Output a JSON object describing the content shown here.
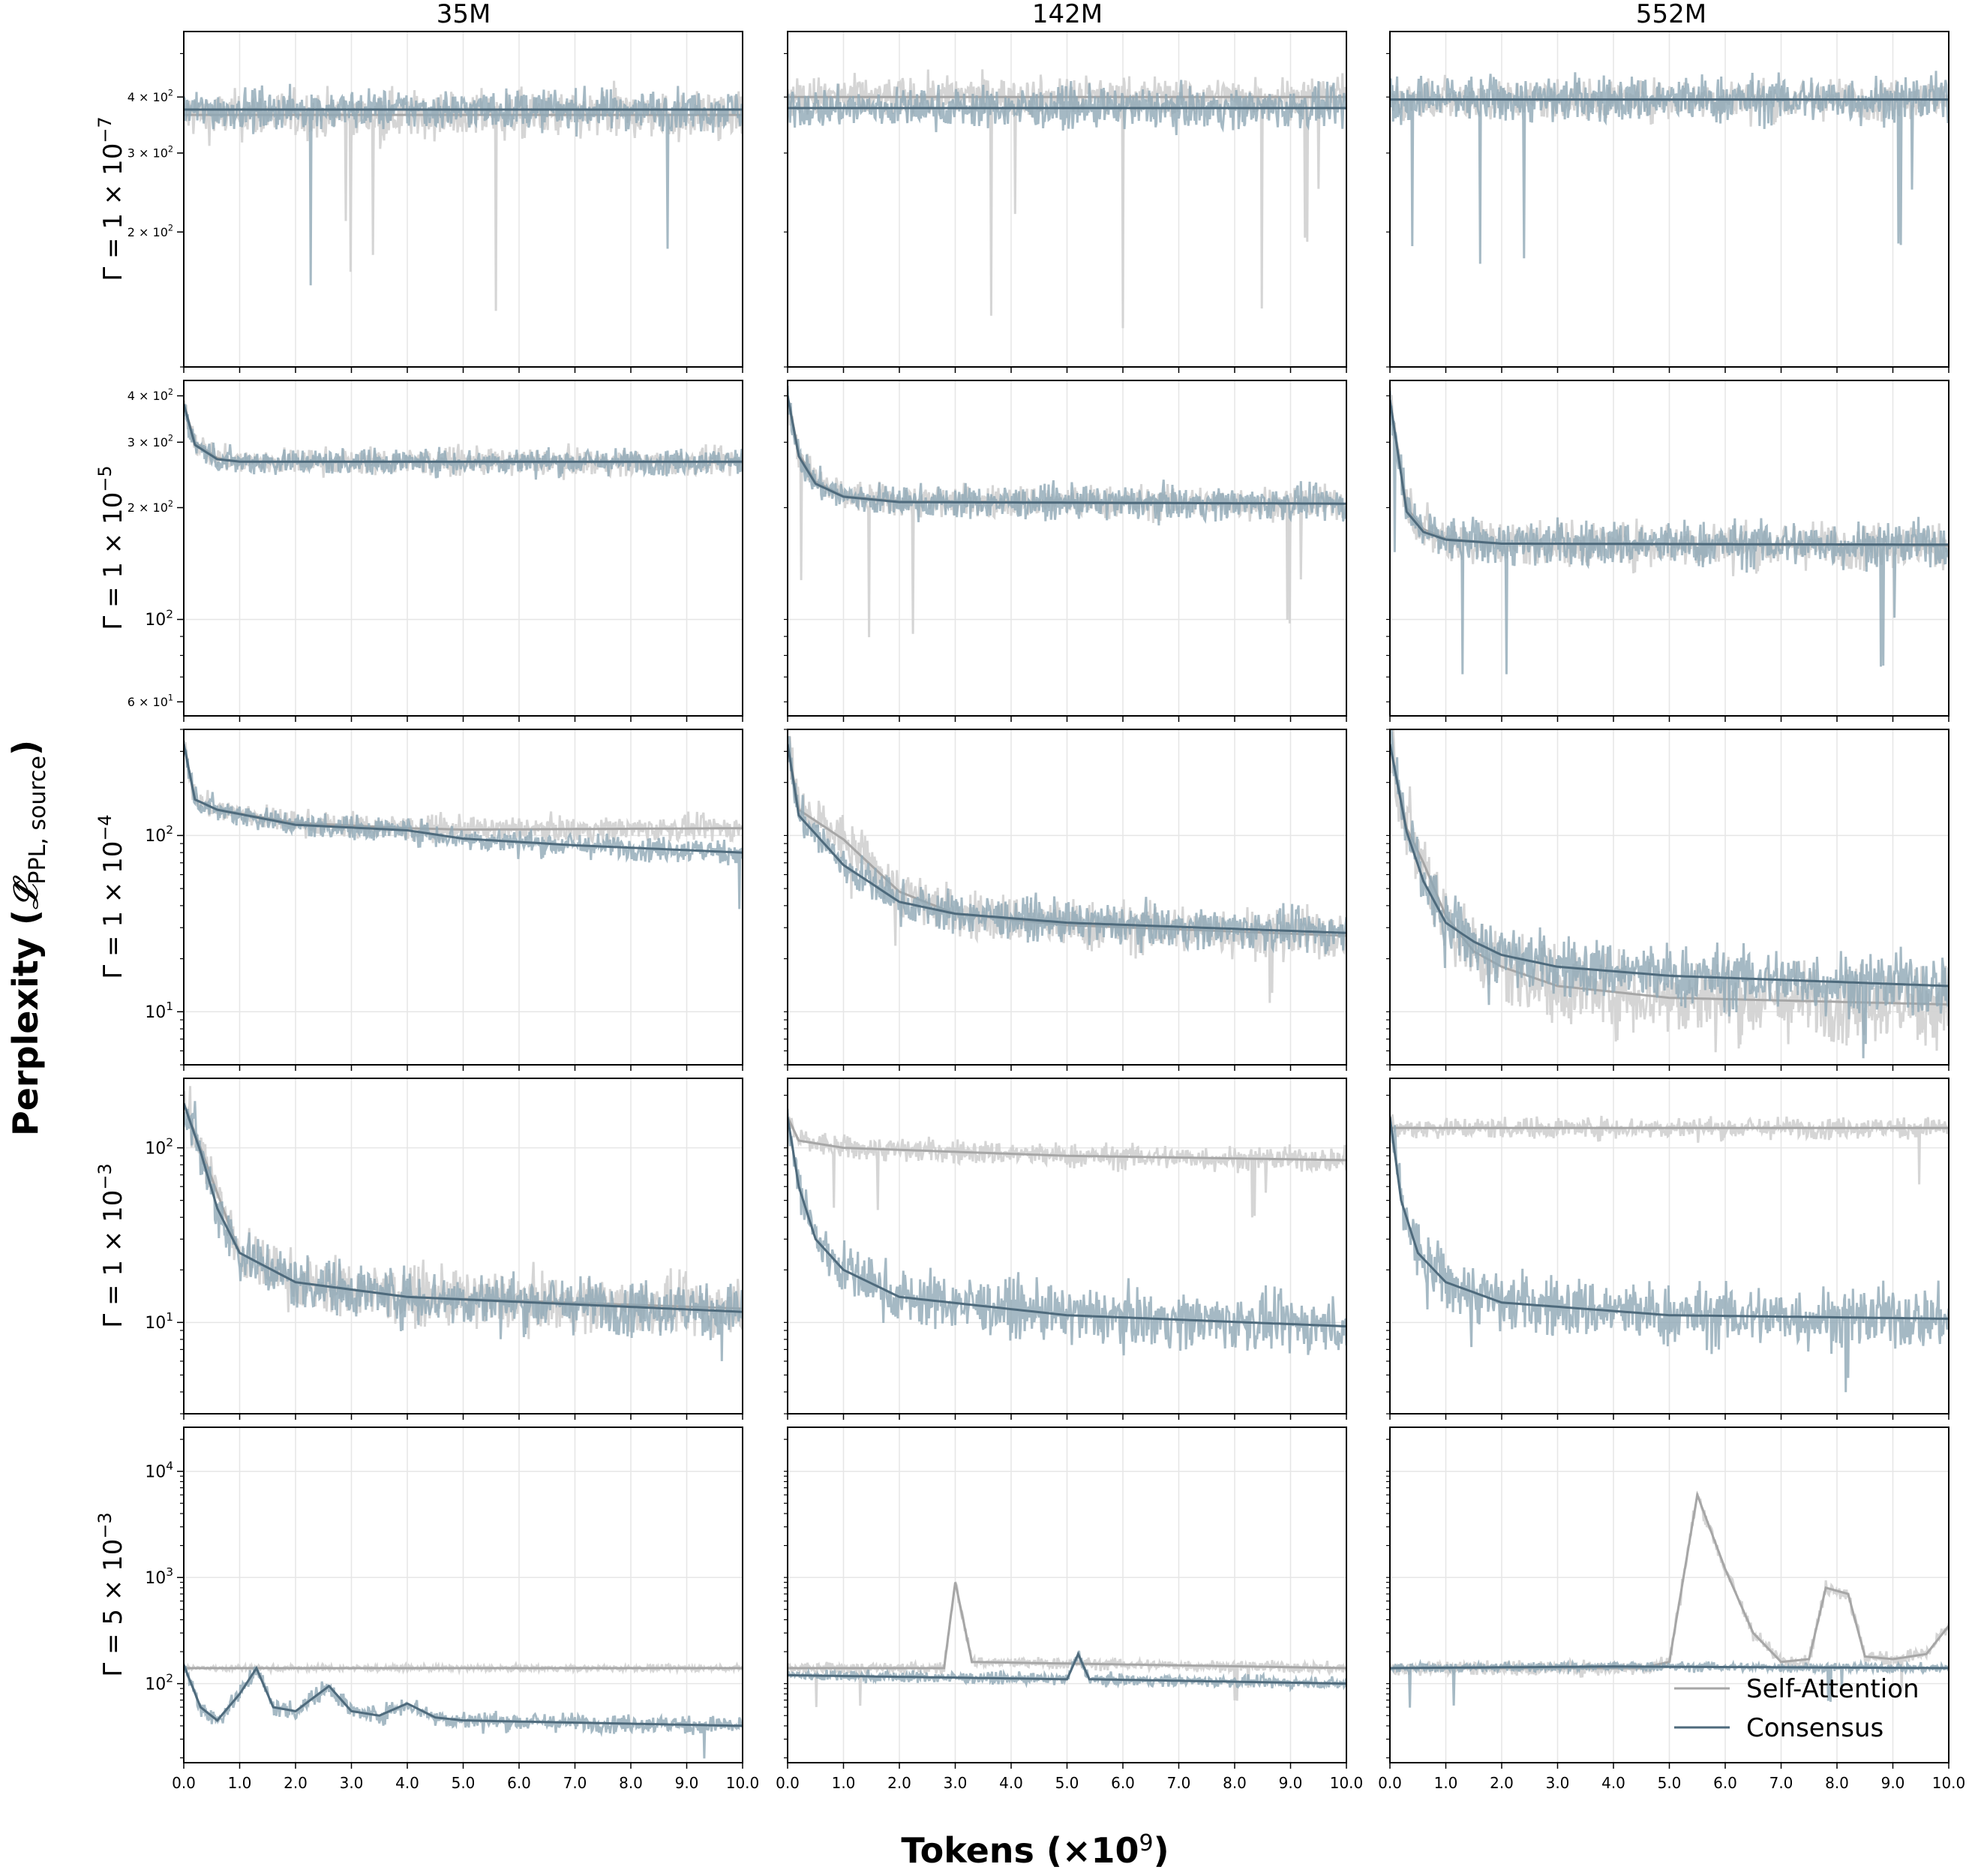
{
  "figure": {
    "ylabel_main": "Perplexity (",
    "ylabel_symbol": "𝓛̂",
    "ylabel_sub": "PPL, source",
    "ylabel_close": ")",
    "xlabel_main": "Tokens (×10",
    "xlabel_sup": "9",
    "xlabel_close": ")",
    "columns": [
      "35M",
      "142M",
      "552M"
    ],
    "rows": [
      {
        "base": "Γ = 1 × 10",
        "exp": "−7"
      },
      {
        "base": "Γ = 1 × 10",
        "exp": "−5"
      },
      {
        "base": "Γ = 1 × 10",
        "exp": "−4"
      },
      {
        "base": "Γ = 1 × 10",
        "exp": "−3"
      },
      {
        "base": "Γ = 5 × 10",
        "exp": "−3"
      }
    ],
    "xticks": [
      "0.0",
      "1.0",
      "2.0",
      "3.0",
      "4.0",
      "5.0",
      "6.0",
      "7.0",
      "8.0",
      "9.0",
      "10.0"
    ],
    "legend": {
      "position": "lower right of bottom-right panel",
      "entries": [
        "Self-Attention",
        "Consensus"
      ]
    },
    "colors": {
      "self_attention_smooth": "#a6a6a6",
      "self_attention_raw": "#d3d3d3",
      "consensus_smooth": "#4e6a7c",
      "consensus_raw": "#8fa7b5"
    }
  },
  "chart_data": {
    "type": "line",
    "yscale": "log",
    "xlim": [
      0,
      10
    ],
    "grid": true,
    "series_names": [
      "Self-Attention",
      "Consensus"
    ],
    "panels": [
      {
        "row": 0,
        "col": 0,
        "ylim": [
          100,
          560
        ],
        "yticks": [
          {
            "v": 200,
            "b": "2",
            "e": "2"
          },
          {
            "v": 300,
            "b": "3",
            "e": "2"
          },
          {
            "v": 400,
            "b": "4",
            "e": "2"
          }
        ],
        "series": [
          {
            "name": "Self-Attention",
            "x": [
              0,
              10
            ],
            "y": [
              365,
              365
            ],
            "noise": 0.06
          },
          {
            "name": "Consensus",
            "x": [
              0,
              10
            ],
            "y": [
              375,
              375
            ],
            "noise": 0.05
          }
        ]
      },
      {
        "row": 0,
        "col": 1,
        "ylim": [
          100,
          560
        ],
        "yticks": [],
        "series": [
          {
            "name": "Self-Attention",
            "x": [
              0,
              10
            ],
            "y": [
              400,
              400
            ],
            "noise": 0.05
          },
          {
            "name": "Consensus",
            "x": [
              0,
              10
            ],
            "y": [
              378,
              378
            ],
            "noise": 0.05
          }
        ]
      },
      {
        "row": 0,
        "col": 2,
        "ylim": [
          100,
          560
        ],
        "yticks": [],
        "series": [
          {
            "name": "Self-Attention",
            "x": [
              0,
              10
            ],
            "y": [
              395,
              395
            ],
            "noise": 0.05
          },
          {
            "name": "Consensus",
            "x": [
              0,
              10
            ],
            "y": [
              395,
              395
            ],
            "noise": 0.06
          }
        ]
      },
      {
        "row": 1,
        "col": 0,
        "ylim": [
          55,
          440
        ],
        "yticks": [
          {
            "v": 60,
            "b": "6",
            "e": "1"
          },
          {
            "v": 100,
            "b": "",
            "e": "2"
          },
          {
            "v": 200,
            "b": "2",
            "e": "2"
          },
          {
            "v": 300,
            "b": "3",
            "e": "2"
          },
          {
            "v": 400,
            "b": "4",
            "e": "2"
          }
        ],
        "series": [
          {
            "name": "Self-Attention",
            "x": [
              0,
              0.2,
              0.6,
              1,
              10
            ],
            "y": [
              380,
              300,
              272,
              266,
              265
            ],
            "noise": 0.04
          },
          {
            "name": "Consensus",
            "x": [
              0,
              0.2,
              0.6,
              1,
              10
            ],
            "y": [
              380,
              295,
              270,
              266,
              266
            ],
            "noise": 0.04
          }
        ]
      },
      {
        "row": 1,
        "col": 1,
        "ylim": [
          55,
          440
        ],
        "yticks": [],
        "series": [
          {
            "name": "Self-Attention",
            "x": [
              0,
              0.2,
              0.5,
              1,
              2,
              10
            ],
            "y": [
              400,
              280,
              235,
              215,
              208,
              205
            ],
            "noise": 0.05
          },
          {
            "name": "Consensus",
            "x": [
              0,
              0.2,
              0.5,
              1,
              2,
              10
            ],
            "y": [
              400,
              275,
              232,
              214,
              207,
              205
            ],
            "noise": 0.05
          }
        ]
      },
      {
        "row": 1,
        "col": 2,
        "ylim": [
          55,
          440
        ],
        "yticks": [],
        "series": [
          {
            "name": "Self-Attention",
            "x": [
              0,
              0.3,
              0.6,
              1,
              2,
              10
            ],
            "y": [
              390,
              200,
              175,
              165,
              160,
              158
            ],
            "noise": 0.07
          },
          {
            "name": "Consensus",
            "x": [
              0,
              0.3,
              0.6,
              1,
              2,
              10
            ],
            "y": [
              390,
              195,
              172,
              164,
              160,
              159
            ],
            "noise": 0.07
          }
        ]
      },
      {
        "row": 2,
        "col": 0,
        "ylim": [
          5,
          400
        ],
        "yticks": [
          {
            "v": 10,
            "b": "",
            "e": "1"
          },
          {
            "v": 100,
            "b": "",
            "e": "2"
          }
        ],
        "series": [
          {
            "name": "Self-Attention",
            "x": [
              0,
              0.2,
              0.6,
              2,
              4,
              5,
              10
            ],
            "y": [
              330,
              160,
              140,
              118,
              110,
              108,
              110
            ],
            "noise": 0.08
          },
          {
            "name": "Consensus",
            "x": [
              0,
              0.2,
              0.6,
              2,
              4,
              5,
              7,
              10
            ],
            "y": [
              330,
              160,
              140,
              115,
              107,
              96,
              88,
              80
            ],
            "noise": 0.08
          }
        ]
      },
      {
        "row": 2,
        "col": 1,
        "ylim": [
          5,
          400
        ],
        "yticks": [],
        "series": [
          {
            "name": "Self-Attention",
            "x": [
              0,
              0.2,
              1,
              2,
              3,
              5,
              10
            ],
            "y": [
              330,
              140,
              95,
              48,
              36,
              31,
              27
            ],
            "noise": 0.16
          },
          {
            "name": "Consensus",
            "x": [
              0,
              0.2,
              1,
              2,
              3,
              5,
              10
            ],
            "y": [
              330,
              130,
              68,
              42,
              36,
              32,
              28
            ],
            "noise": 0.13
          }
        ]
      },
      {
        "row": 2,
        "col": 2,
        "ylim": [
          5,
          400
        ],
        "yticks": [],
        "series": [
          {
            "name": "Self-Attention",
            "x": [
              0,
              0.3,
              0.6,
              1,
              1.5,
              2,
              3,
              5,
              10
            ],
            "y": [
              330,
              110,
              70,
              35,
              22,
              18,
              14,
              12,
              11
            ],
            "noise": 0.25
          },
          {
            "name": "Consensus",
            "x": [
              0,
              0.3,
              0.6,
              1,
              1.5,
              2,
              3,
              5,
              10
            ],
            "y": [
              330,
              105,
              55,
              32,
              25,
              21,
              18,
              16,
              14
            ],
            "noise": 0.2
          }
        ]
      },
      {
        "row": 3,
        "col": 0,
        "ylim": [
          3,
          250
        ],
        "yticks": [
          {
            "v": 10,
            "b": "",
            "e": "1"
          },
          {
            "v": 100,
            "b": "",
            "e": "2"
          }
        ],
        "series": [
          {
            "name": "Self-Attention",
            "x": [
              0,
              0.3,
              0.6,
              1,
              2,
              4,
              10
            ],
            "y": [
              180,
              100,
              55,
              25,
              17,
              14,
              12
            ],
            "noise": 0.18
          },
          {
            "name": "Consensus",
            "x": [
              0,
              0.3,
              0.6,
              1,
              2,
              4,
              10
            ],
            "y": [
              180,
              95,
              45,
              25,
              17,
              14,
              11.5
            ],
            "noise": 0.18
          }
        ]
      },
      {
        "row": 3,
        "col": 1,
        "ylim": [
          3,
          250
        ],
        "yticks": [],
        "series": [
          {
            "name": "Self-Attention",
            "x": [
              0,
              0.2,
              1,
              5,
              10
            ],
            "y": [
              150,
              110,
              100,
              90,
              85
            ],
            "noise": 0.08
          },
          {
            "name": "Consensus",
            "x": [
              0,
              0.2,
              0.5,
              1,
              2,
              5,
              10
            ],
            "y": [
              150,
              60,
              30,
              20,
              14,
              11,
              9.5
            ],
            "noise": 0.18
          }
        ]
      },
      {
        "row": 3,
        "col": 2,
        "ylim": [
          3,
          250
        ],
        "yticks": [],
        "series": [
          {
            "name": "Self-Attention",
            "x": [
              0,
              10
            ],
            "y": [
              130,
              130
            ],
            "noise": 0.07
          },
          {
            "name": "Consensus",
            "x": [
              0,
              0.2,
              0.5,
              1,
              2,
              5,
              10
            ],
            "y": [
              150,
              50,
              25,
              17,
              13,
              11,
              10.5
            ],
            "noise": 0.2
          }
        ]
      },
      {
        "row": 4,
        "col": 0,
        "ylim": [
          18,
          26000
        ],
        "yticks": [
          {
            "v": 100,
            "b": "",
            "e": "2"
          },
          {
            "v": 1000,
            "b": "",
            "e": "3"
          },
          {
            "v": 10000,
            "b": "",
            "e": "4"
          }
        ],
        "series": [
          {
            "name": "Self-Attention",
            "x": [
              0,
              10
            ],
            "y": [
              140,
              140
            ],
            "noise": 0.03
          },
          {
            "name": "Consensus",
            "x": [
              0,
              0.3,
              0.6,
              1,
              1.3,
              1.6,
              2,
              2.6,
              3,
              3.5,
              4,
              4.5,
              5,
              10
            ],
            "y": [
              150,
              60,
              45,
              80,
              140,
              60,
              55,
              95,
              55,
              50,
              65,
              48,
              45,
              40
            ],
            "noise": 0.1
          }
        ]
      },
      {
        "row": 4,
        "col": 1,
        "ylim": [
          18,
          26000
        ],
        "yticks": [],
        "series": [
          {
            "name": "Self-Attention",
            "x": [
              0,
              2.8,
              3.0,
              3.3,
              10
            ],
            "y": [
              140,
              140,
              900,
              160,
              140
            ],
            "noise": 0.06
          },
          {
            "name": "Consensus",
            "x": [
              0,
              5,
              5.2,
              5.4,
              10
            ],
            "y": [
              120,
              110,
              190,
              110,
              100
            ],
            "noise": 0.06
          }
        ]
      },
      {
        "row": 4,
        "col": 2,
        "ylim": [
          18,
          26000
        ],
        "yticks": [],
        "series": [
          {
            "name": "Self-Attention",
            "x": [
              0,
              4.5,
              5,
              5.5,
              6,
              6.5,
              7,
              7.5,
              7.8,
              8.2,
              8.5,
              9,
              9.6,
              10
            ],
            "y": [
              140,
              140,
              160,
              6000,
              1200,
              300,
              160,
              170,
              800,
              700,
              180,
              170,
              190,
              350
            ],
            "noise": 0.08
          },
          {
            "name": "Consensus",
            "x": [
              0,
              4,
              10
            ],
            "y": [
              140,
              145,
              140
            ],
            "noise": 0.05
          }
        ]
      }
    ]
  }
}
